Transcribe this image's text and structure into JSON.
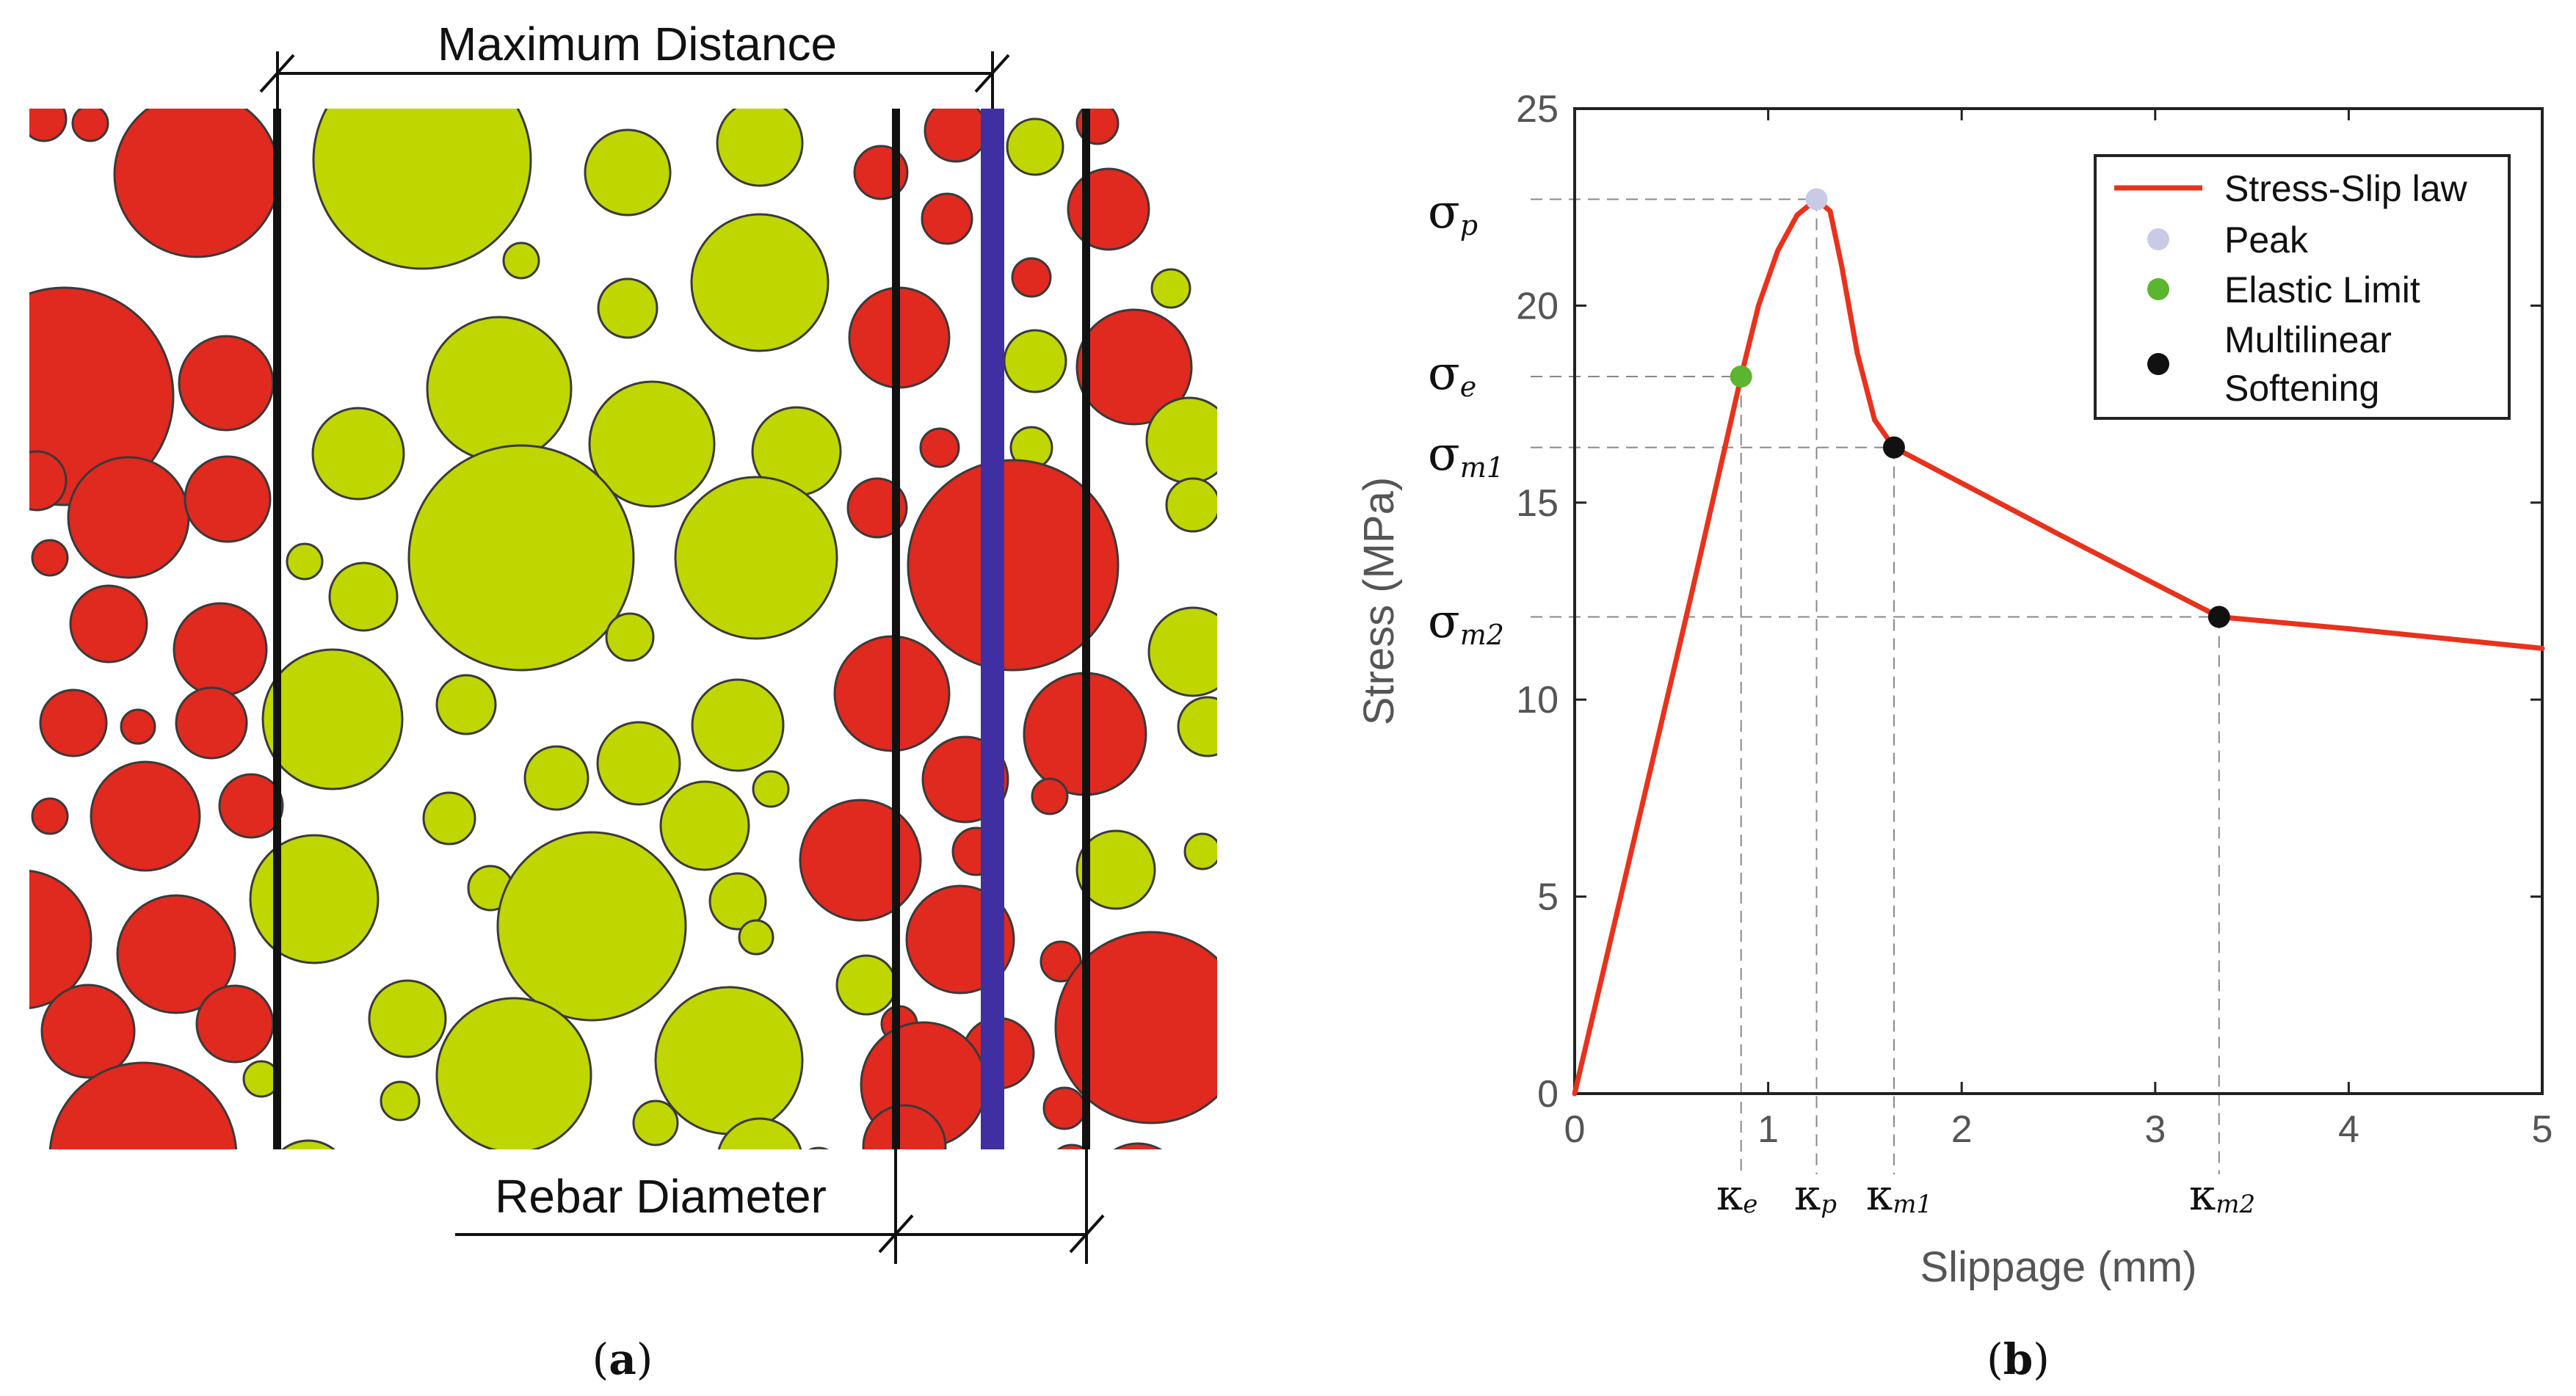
{
  "colors": {
    "aggregate_red": "#e0291f",
    "aggregate_green": "#bfd600",
    "rebar_blue": "#3f2fa3",
    "curve": "#e8321c",
    "peak_marker": "#c9cae6",
    "elastic_marker": "#5bb52e",
    "softening_marker": "#111111"
  },
  "panel_a": {
    "max_distance_label": "Maximum Distance",
    "rebar_diameter_label": "Rebar Diameter",
    "caption_letter": "a",
    "caption_open": "(",
    "caption_close": ")"
  },
  "panel_b": {
    "caption_letter": "b",
    "caption_open": "(",
    "caption_close": ")",
    "sigma_labels": {
      "p": {
        "base": "σ",
        "sub": "p"
      },
      "e": {
        "base": "σ",
        "sub": "e"
      },
      "m1": {
        "base": "σ",
        "sub": "m1"
      },
      "m2": {
        "base": "σ",
        "sub": "m2"
      }
    },
    "kappa_labels": {
      "e": {
        "base": "κ",
        "sub": "e"
      },
      "p": {
        "base": "κ",
        "sub": "p"
      },
      "m1": {
        "base": "κ",
        "sub": "m1"
      },
      "m2": {
        "base": "κ",
        "sub": "m2"
      }
    }
  },
  "chart_data": {
    "type": "line",
    "xlabel": "Slippage (mm)",
    "ylabel": "Stress (MPa)",
    "xlim": [
      0,
      5
    ],
    "ylim": [
      0,
      25
    ],
    "xticks": [
      0,
      1,
      2,
      3,
      4,
      5
    ],
    "yticks": [
      0,
      5,
      10,
      15,
      20,
      25
    ],
    "legend": {
      "position": "top-right",
      "entries": [
        {
          "label": "Stress-Slip law",
          "kind": "line"
        },
        {
          "label": "Peak",
          "kind": "marker"
        },
        {
          "label": "Elastic Limit",
          "kind": "marker"
        },
        {
          "label": "Multilinear",
          "label2": "Softening",
          "kind": "marker"
        }
      ]
    },
    "series": [
      {
        "name": "Stress-Slip law",
        "x": [
          0,
          0.3,
          0.6,
          0.86,
          0.95,
          1.05,
          1.15,
          1.25,
          1.32,
          1.38,
          1.46,
          1.55,
          1.65,
          2.5,
          3.33,
          4.0,
          5.0
        ],
        "y": [
          0,
          6.3,
          12.6,
          18.2,
          20.0,
          21.4,
          22.3,
          22.7,
          22.4,
          21.0,
          18.8,
          17.1,
          16.4,
          14.2,
          12.1,
          11.8,
          11.3
        ]
      }
    ],
    "points": {
      "peak": {
        "x": 1.25,
        "y": 22.7
      },
      "elastic_limit": {
        "x": 0.86,
        "y": 18.2
      },
      "softening": [
        {
          "x": 1.65,
          "y": 16.4
        },
        {
          "x": 3.33,
          "y": 12.1
        }
      ]
    }
  }
}
